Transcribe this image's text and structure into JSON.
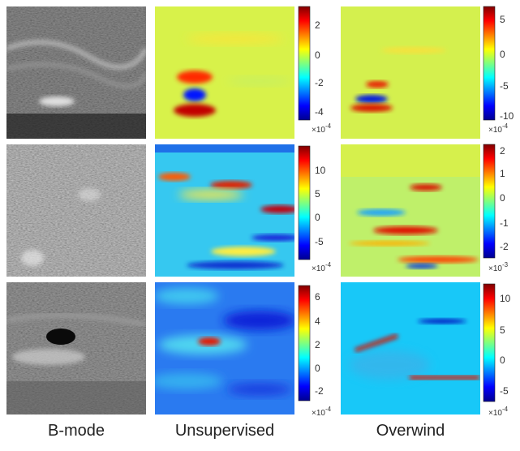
{
  "columns": [
    "B-mode",
    "Unsupervised",
    "Overwind"
  ],
  "rows": [
    {
      "unsupervised": {
        "ticks": [
          "2",
          "0",
          "-2",
          "-4"
        ],
        "multiplier": "×10",
        "exponent": "-4"
      },
      "overwind": {
        "ticks": [
          "5",
          "0",
          "-5",
          "-10"
        ],
        "multiplier": "×10",
        "exponent": "-4"
      }
    },
    {
      "unsupervised": {
        "ticks": [
          "10",
          "5",
          "0",
          "-5"
        ],
        "multiplier": "×10",
        "exponent": "-4"
      },
      "overwind": {
        "ticks": [
          "2",
          "1",
          "0",
          "-1",
          "-2"
        ],
        "multiplier": "×10",
        "exponent": "-3"
      }
    },
    {
      "unsupervised": {
        "ticks": [
          "6",
          "4",
          "2",
          "0",
          "-2"
        ],
        "multiplier": "×10",
        "exponent": "-4"
      },
      "overwind": {
        "ticks": [
          "10",
          "5",
          "0",
          "-5"
        ],
        "multiplier": "×10",
        "exponent": "-4"
      }
    }
  ],
  "colors": {
    "jet_low": "#00008f",
    "jet_mid": "#7fff7f",
    "jet_high": "#800000"
  }
}
